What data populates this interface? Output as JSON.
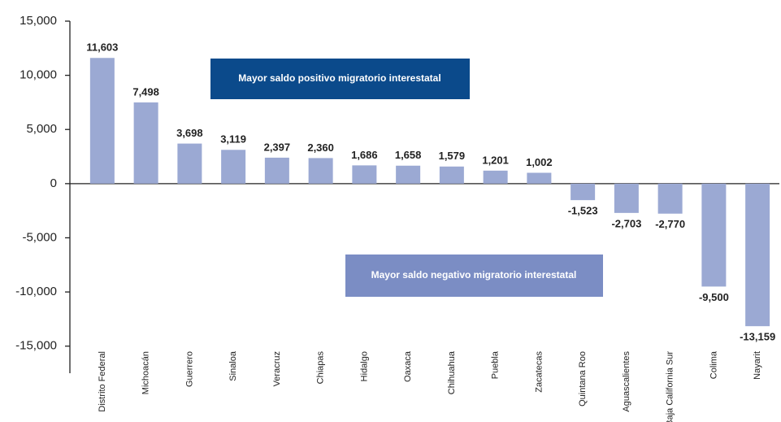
{
  "chart_data": {
    "type": "bar",
    "categories": [
      "Distrito Federal",
      "Michoacán",
      "Guerrero",
      "Sinaloa",
      "Veracruz",
      "Chiapas",
      "Hidalgo",
      "Oaxaca",
      "Chihuahua",
      "Puebla",
      "Zacatecas",
      "Quintana Roo",
      "Aguascalientes",
      "Baja California Sur",
      "Colima",
      "Nayarit"
    ],
    "values": [
      11603,
      7498,
      3698,
      3119,
      2397,
      2360,
      1686,
      1658,
      1579,
      1201,
      1002,
      -1523,
      -2703,
      -2770,
      -9500,
      -13159
    ],
    "value_labels": [
      "11,603",
      "7,498",
      "3,698",
      "3,119",
      "2,397",
      "2,360",
      "1,686",
      "1,658",
      "1,579",
      "1,201",
      "1,002",
      "-1,523",
      "-2,703",
      "-2,770",
      "-9,500",
      "-13,159"
    ],
    "color": "#9ba9d3",
    "ylim": [
      -17500,
      15000
    ],
    "yticks": [
      {
        "value": -15000,
        "label": "-15,000"
      },
      {
        "value": -10000,
        "label": "-10,000"
      },
      {
        "value": -5000,
        "label": "-5,000"
      },
      0,
      {
        "value": 5000,
        "label": "5,000"
      },
      {
        "value": 10000,
        "label": "10,000"
      },
      {
        "value": 15000,
        "label": "15,000"
      }
    ],
    "annotations": [
      "Mayor saldo positivo migratorio interestatal",
      "Mayor saldo negativo migratorio interestatal"
    ]
  }
}
